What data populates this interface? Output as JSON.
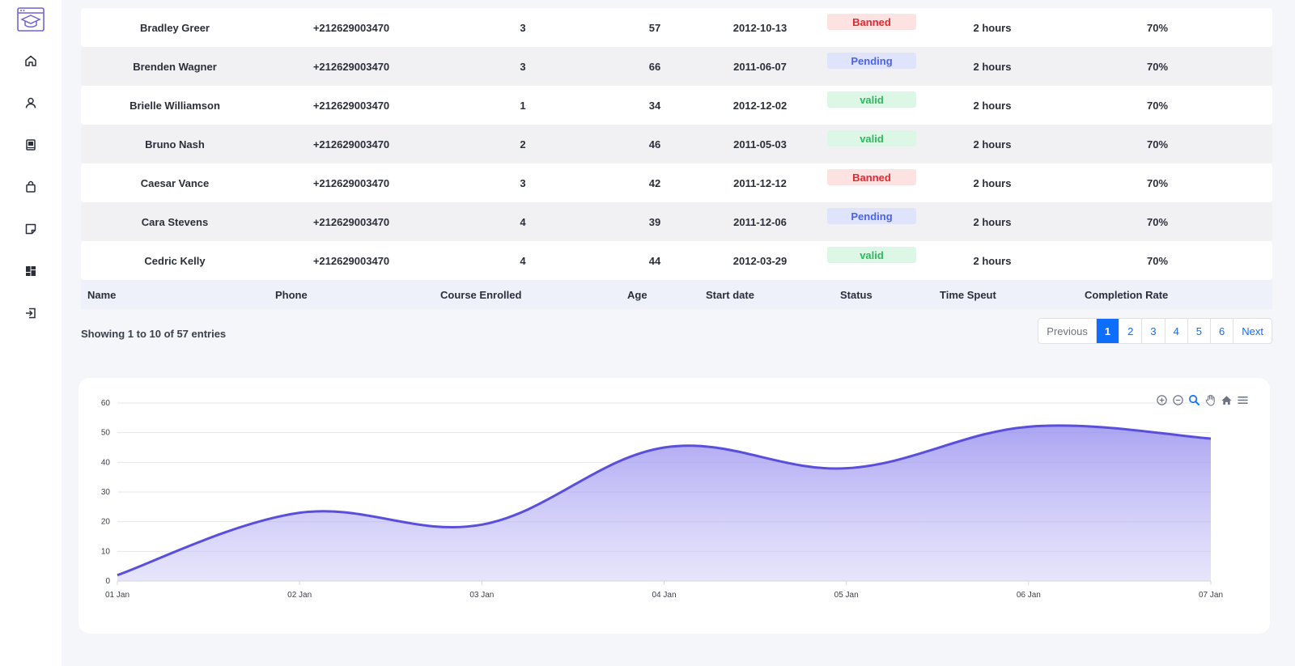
{
  "sidebar": {
    "items": [
      {
        "name": "home-icon"
      },
      {
        "name": "user-icon"
      },
      {
        "name": "book-icon"
      },
      {
        "name": "bag-icon"
      },
      {
        "name": "note-icon"
      },
      {
        "name": "dashboard-icon"
      },
      {
        "name": "logout-icon"
      }
    ]
  },
  "table": {
    "rows": [
      {
        "name": "Bradley Greer",
        "phone": "+212629003470",
        "course": "3",
        "age": "57",
        "date": "2012-10-13",
        "status": "Banned",
        "status_type": "banned",
        "time": "2 hours",
        "rate": "70%"
      },
      {
        "name": "Brenden Wagner",
        "phone": "+212629003470",
        "course": "3",
        "age": "66",
        "date": "2011-06-07",
        "status": "Pending",
        "status_type": "pending",
        "time": "2 hours",
        "rate": "70%"
      },
      {
        "name": "Brielle Williamson",
        "phone": "+212629003470",
        "course": "1",
        "age": "34",
        "date": "2012-12-02",
        "status": "valid",
        "status_type": "valid",
        "time": "2 hours",
        "rate": "70%"
      },
      {
        "name": "Bruno Nash",
        "phone": "+212629003470",
        "course": "2",
        "age": "46",
        "date": "2011-05-03",
        "status": "valid",
        "status_type": "valid",
        "time": "2 hours",
        "rate": "70%"
      },
      {
        "name": "Caesar Vance",
        "phone": "+212629003470",
        "course": "3",
        "age": "42",
        "date": "2011-12-12",
        "status": "Banned",
        "status_type": "banned",
        "time": "2 hours",
        "rate": "70%"
      },
      {
        "name": "Cara Stevens",
        "phone": "+212629003470",
        "course": "4",
        "age": "39",
        "date": "2011-12-06",
        "status": "Pending",
        "status_type": "pending",
        "time": "2 hours",
        "rate": "70%"
      },
      {
        "name": "Cedric Kelly",
        "phone": "+212629003470",
        "course": "4",
        "age": "44",
        "date": "2012-03-29",
        "status": "valid",
        "status_type": "valid",
        "time": "2 hours",
        "rate": "70%"
      }
    ],
    "headers": {
      "name": "Name",
      "phone": "Phone",
      "course": "Course Enrolled",
      "age": "Age",
      "date": "Start date",
      "status": "Status",
      "time": "Time Speut",
      "rate": "Completion Rate"
    }
  },
  "footer": {
    "showing": "Showing 1 to 10 of 57 entries",
    "pager": {
      "previous": "Previous",
      "pages": [
        "1",
        "2",
        "3",
        "4",
        "5",
        "6"
      ],
      "active": "1",
      "next": "Next"
    }
  },
  "chart_toolbar": [
    "zoom-in-icon",
    "zoom-out-icon",
    "magnifier-icon",
    "pan-hand-icon",
    "home-reset-icon",
    "menu-icon"
  ],
  "chart_data": {
    "type": "area",
    "x": [
      "01 Jan",
      "02 Jan",
      "03 Jan",
      "04 Jan",
      "05 Jan",
      "06 Jan",
      "07 Jan"
    ],
    "series": [
      {
        "values": [
          2,
          23,
          19,
          45,
          38,
          52,
          48
        ]
      }
    ],
    "yticks": [
      0,
      10,
      20,
      30,
      40,
      50,
      60
    ],
    "ylim": [
      0,
      60
    ],
    "grid": true,
    "legend": "none",
    "color": "#5a4fdc"
  }
}
